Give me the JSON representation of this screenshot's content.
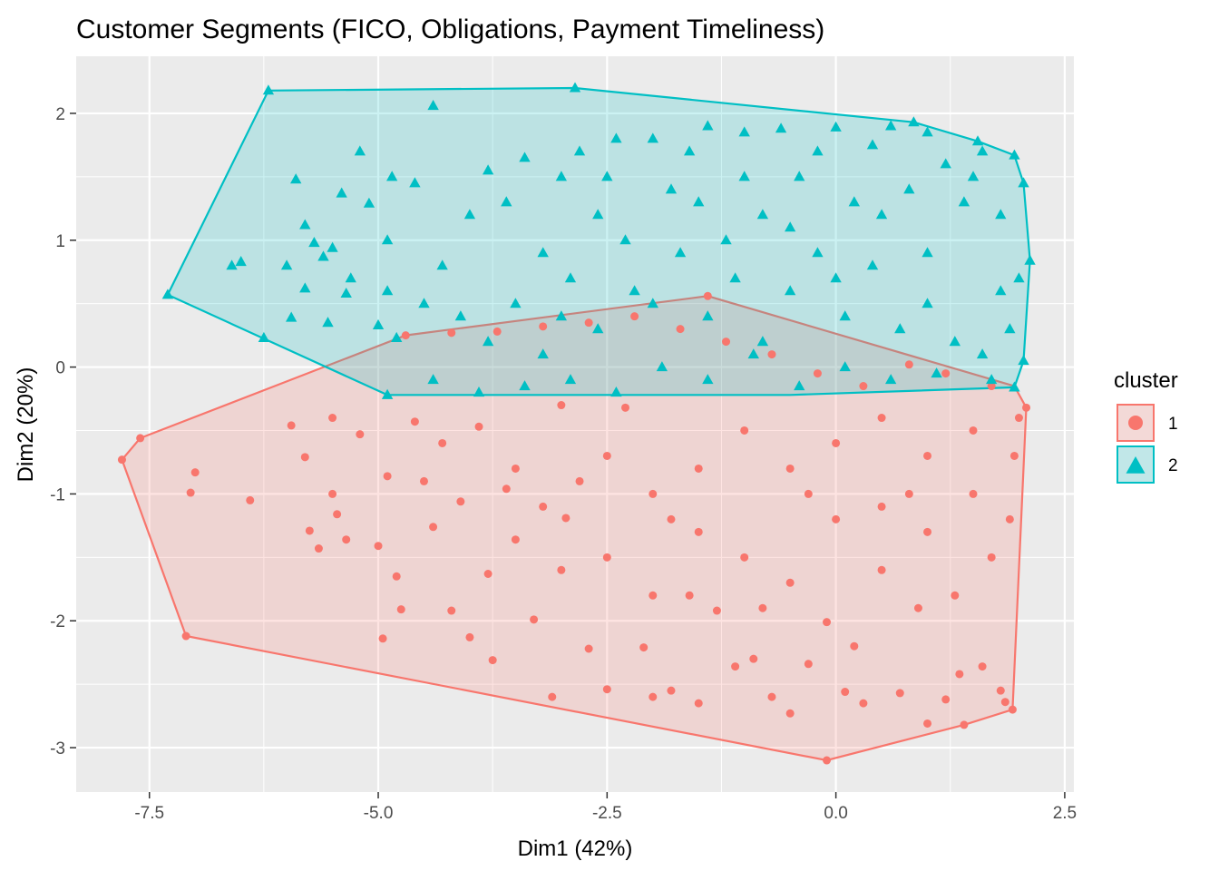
{
  "chart_data": {
    "type": "scatter",
    "title": "Customer Segments (FICO, Obligations, Payment Timeliness)",
    "xlabel": "Dim1 (42%)",
    "ylabel": "Dim2 (20%)",
    "xlim": [
      -8.3,
      2.6
    ],
    "ylim": [
      -3.35,
      2.45
    ],
    "x_ticks": [
      -7.5,
      -5.0,
      -2.5,
      0.0,
      2.5
    ],
    "x_tick_labels": [
      "-7.5",
      "-5.0",
      "-2.5",
      "0.0",
      "2.5"
    ],
    "y_ticks": [
      -3,
      -2,
      -1,
      0,
      1,
      2
    ],
    "y_tick_labels": [
      "-3",
      "-2",
      "-1",
      "0",
      "1",
      "2"
    ],
    "grid": true,
    "legend": {
      "title": "cluster",
      "placement": "right"
    },
    "colors": {
      "1": "#F8766D",
      "2": "#00BFC4",
      "panel": "#EBEBEB",
      "grid": "#FFFFFF"
    },
    "series": [
      {
        "name": "1",
        "shape": "circle",
        "color": "#F8766D",
        "hull": [
          [
            -7.8,
            -0.73
          ],
          [
            -7.6,
            -0.56
          ],
          [
            -4.7,
            0.25
          ],
          [
            -1.4,
            0.56
          ],
          [
            1.95,
            -0.15
          ],
          [
            2.08,
            -0.32
          ],
          [
            1.93,
            -2.7
          ],
          [
            1.4,
            -2.82
          ],
          [
            -0.1,
            -3.1
          ],
          [
            -7.1,
            -2.12
          ]
        ],
        "points": [
          [
            -7.8,
            -0.73
          ],
          [
            -7.6,
            -0.56
          ],
          [
            -7.1,
            -2.12
          ],
          [
            -0.1,
            -3.1
          ],
          [
            1.4,
            -2.82
          ],
          [
            1.93,
            -2.7
          ],
          [
            2.08,
            -0.32
          ],
          [
            -1.4,
            0.56
          ],
          [
            -4.7,
            0.25
          ],
          [
            -7.0,
            -0.83
          ],
          [
            -7.05,
            -0.99
          ],
          [
            -6.4,
            -1.05
          ],
          [
            -5.95,
            -0.46
          ],
          [
            -5.8,
            -0.71
          ],
          [
            -5.75,
            -1.29
          ],
          [
            -5.65,
            -1.43
          ],
          [
            -5.5,
            -0.4
          ],
          [
            -5.5,
            -1.0
          ],
          [
            -5.45,
            -1.16
          ],
          [
            -5.35,
            -1.36
          ],
          [
            -5.2,
            -0.53
          ],
          [
            -5.0,
            -1.41
          ],
          [
            -4.95,
            -2.14
          ],
          [
            -4.9,
            -0.86
          ],
          [
            -4.8,
            -1.65
          ],
          [
            -4.75,
            -1.91
          ],
          [
            -4.6,
            -0.43
          ],
          [
            -4.4,
            -1.26
          ],
          [
            -4.3,
            -0.6
          ],
          [
            -4.2,
            -1.92
          ],
          [
            -4.1,
            -1.06
          ],
          [
            -4.0,
            -2.13
          ],
          [
            -3.9,
            -0.47
          ],
          [
            -3.8,
            -1.63
          ],
          [
            -3.75,
            -2.31
          ],
          [
            -3.6,
            -0.96
          ],
          [
            -3.5,
            -1.36
          ],
          [
            -3.3,
            -1.99
          ],
          [
            -3.1,
            -2.6
          ],
          [
            -2.95,
            -1.19
          ],
          [
            -2.7,
            -2.22
          ],
          [
            -2.5,
            -2.54
          ],
          [
            -2.3,
            -0.32
          ],
          [
            -2.1,
            -2.21
          ],
          [
            -2.0,
            -2.6
          ],
          [
            -1.8,
            -2.55
          ],
          [
            -1.6,
            -1.8
          ],
          [
            -1.5,
            -2.65
          ],
          [
            -1.3,
            -1.92
          ],
          [
            -1.1,
            -2.36
          ],
          [
            -0.9,
            -2.3
          ],
          [
            -0.7,
            -2.6
          ],
          [
            -0.5,
            -2.73
          ],
          [
            -0.3,
            -2.34
          ],
          [
            -0.1,
            -2.01
          ],
          [
            0.1,
            -2.56
          ],
          [
            0.3,
            -2.65
          ],
          [
            0.5,
            -1.1
          ],
          [
            0.7,
            -2.57
          ],
          [
            0.9,
            -1.9
          ],
          [
            1.0,
            -2.81
          ],
          [
            1.2,
            -2.62
          ],
          [
            1.35,
            -2.42
          ],
          [
            1.6,
            -2.36
          ],
          [
            1.8,
            -2.55
          ],
          [
            1.85,
            -2.64
          ],
          [
            1.9,
            -1.2
          ],
          [
            1.95,
            -0.7
          ],
          [
            2.0,
            -0.4
          ],
          [
            1.7,
            -0.15
          ],
          [
            1.2,
            -0.05
          ],
          [
            0.8,
            0.02
          ],
          [
            0.3,
            -0.15
          ],
          [
            -0.2,
            -0.05
          ],
          [
            -0.7,
            0.1
          ],
          [
            -1.2,
            0.2
          ],
          [
            -1.7,
            0.3
          ],
          [
            -2.2,
            0.4
          ],
          [
            -2.7,
            0.35
          ],
          [
            -3.2,
            0.32
          ],
          [
            -3.7,
            0.28
          ],
          [
            -4.2,
            0.27
          ],
          [
            -3.0,
            -0.3
          ],
          [
            -2.5,
            -0.7
          ],
          [
            -2.0,
            -1.0
          ],
          [
            -1.5,
            -1.3
          ],
          [
            -1.0,
            -1.5
          ],
          [
            -0.5,
            -1.7
          ],
          [
            0.0,
            -1.2
          ],
          [
            0.5,
            -1.6
          ],
          [
            1.0,
            -1.3
          ],
          [
            1.5,
            -1.0
          ],
          [
            -1.0,
            -0.5
          ],
          [
            -0.5,
            -0.8
          ],
          [
            0.0,
            -0.6
          ],
          [
            0.5,
            -0.4
          ],
          [
            1.0,
            -0.7
          ],
          [
            1.5,
            -0.5
          ],
          [
            -2.5,
            -1.5
          ],
          [
            -2.0,
            -1.8
          ],
          [
            -1.5,
            -0.8
          ],
          [
            -3.5,
            -0.8
          ],
          [
            -3.0,
            -1.6
          ],
          [
            -2.8,
            -0.9
          ],
          [
            -0.8,
            -1.9
          ],
          [
            0.2,
            -2.2
          ],
          [
            1.3,
            -1.8
          ],
          [
            1.7,
            -1.5
          ],
          [
            -1.8,
            -1.2
          ],
          [
            -0.3,
            -1.0
          ],
          [
            0.8,
            -1.0
          ],
          [
            -4.5,
            -0.9
          ],
          [
            -3.2,
            -1.1
          ]
        ]
      },
      {
        "name": "2",
        "shape": "triangle",
        "color": "#00BFC4",
        "hull": [
          [
            -6.2,
            2.18
          ],
          [
            -2.85,
            2.2
          ],
          [
            0.85,
            1.93
          ],
          [
            1.55,
            1.78
          ],
          [
            1.95,
            1.67
          ],
          [
            2.05,
            1.45
          ],
          [
            2.12,
            0.84
          ],
          [
            2.05,
            0.05
          ],
          [
            1.95,
            -0.16
          ],
          [
            -0.5,
            -0.22
          ],
          [
            -4.9,
            -0.22
          ],
          [
            -7.3,
            0.57
          ]
        ],
        "points": [
          [
            -6.2,
            2.18
          ],
          [
            -2.85,
            2.2
          ],
          [
            0.85,
            1.93
          ],
          [
            1.55,
            1.78
          ],
          [
            1.95,
            1.67
          ],
          [
            2.05,
            1.45
          ],
          [
            2.12,
            0.84
          ],
          [
            2.05,
            0.05
          ],
          [
            1.95,
            -0.16
          ],
          [
            -4.9,
            -0.22
          ],
          [
            -7.3,
            0.57
          ],
          [
            -6.25,
            0.23
          ],
          [
            -4.4,
            2.06
          ],
          [
            -5.9,
            1.48
          ],
          [
            -5.4,
            1.37
          ],
          [
            -5.1,
            1.29
          ],
          [
            -5.2,
            1.7
          ],
          [
            -4.85,
            1.5
          ],
          [
            -4.6,
            1.45
          ],
          [
            -4.9,
            0.6
          ],
          [
            -4.9,
            1.0
          ],
          [
            -5.35,
            0.58
          ],
          [
            -5.55,
            0.35
          ],
          [
            -5.8,
            0.62
          ],
          [
            -5.95,
            0.39
          ],
          [
            -6.0,
            0.8
          ],
          [
            -6.5,
            0.83
          ],
          [
            -6.6,
            0.8
          ],
          [
            -5.8,
            1.12
          ],
          [
            -5.7,
            0.98
          ],
          [
            -5.6,
            0.87
          ],
          [
            -5.5,
            0.94
          ],
          [
            -5.3,
            0.7
          ],
          [
            -5.0,
            0.33
          ],
          [
            -4.8,
            0.23
          ],
          [
            -4.5,
            0.5
          ],
          [
            -4.3,
            0.8
          ],
          [
            -4.0,
            1.2
          ],
          [
            -3.8,
            1.55
          ],
          [
            -3.6,
            1.3
          ],
          [
            -3.4,
            1.65
          ],
          [
            -3.2,
            0.9
          ],
          [
            -3.0,
            1.5
          ],
          [
            -2.8,
            1.7
          ],
          [
            -2.6,
            1.2
          ],
          [
            -2.4,
            1.8
          ],
          [
            -2.2,
            0.6
          ],
          [
            -2.0,
            1.8
          ],
          [
            -1.8,
            1.4
          ],
          [
            -1.6,
            1.7
          ],
          [
            -1.4,
            1.9
          ],
          [
            -1.2,
            1.0
          ],
          [
            -1.0,
            1.85
          ],
          [
            -0.8,
            1.2
          ],
          [
            -0.6,
            1.88
          ],
          [
            -0.4,
            1.5
          ],
          [
            -0.2,
            1.7
          ],
          [
            0.0,
            1.89
          ],
          [
            0.2,
            1.3
          ],
          [
            0.4,
            1.75
          ],
          [
            0.6,
            1.9
          ],
          [
            0.8,
            1.4
          ],
          [
            1.0,
            1.85
          ],
          [
            1.2,
            1.6
          ],
          [
            1.4,
            1.3
          ],
          [
            1.6,
            1.7
          ],
          [
            1.8,
            1.2
          ],
          [
            2.0,
            0.7
          ],
          [
            1.9,
            0.3
          ],
          [
            1.6,
            0.1
          ],
          [
            1.3,
            0.2
          ],
          [
            1.0,
            0.5
          ],
          [
            0.7,
            0.3
          ],
          [
            0.4,
            0.8
          ],
          [
            0.1,
            0.4
          ],
          [
            -0.2,
            0.9
          ],
          [
            -0.5,
            0.6
          ],
          [
            -0.8,
            0.2
          ],
          [
            -1.1,
            0.7
          ],
          [
            -1.4,
            0.4
          ],
          [
            -1.7,
            0.9
          ],
          [
            -2.0,
            0.5
          ],
          [
            -2.3,
            1.0
          ],
          [
            -2.6,
            0.3
          ],
          [
            -2.9,
            0.7
          ],
          [
            -3.2,
            0.1
          ],
          [
            -3.5,
            0.5
          ],
          [
            -3.8,
            0.2
          ],
          [
            -4.1,
            0.4
          ],
          [
            -4.4,
            -0.1
          ],
          [
            -3.9,
            -0.2
          ],
          [
            -3.4,
            -0.15
          ],
          [
            -2.9,
            -0.1
          ],
          [
            -2.4,
            -0.2
          ],
          [
            -1.9,
            0.0
          ],
          [
            -1.4,
            -0.1
          ],
          [
            -0.9,
            0.1
          ],
          [
            -0.4,
            -0.15
          ],
          [
            0.1,
            0.0
          ],
          [
            0.6,
            -0.1
          ],
          [
            1.1,
            -0.05
          ],
          [
            1.7,
            -0.1
          ],
          [
            -1.0,
            1.5
          ],
          [
            -0.5,
            1.1
          ],
          [
            0.0,
            0.7
          ],
          [
            0.5,
            1.2
          ],
          [
            1.0,
            0.9
          ],
          [
            1.5,
            1.5
          ],
          [
            1.8,
            0.6
          ],
          [
            -1.5,
            1.3
          ],
          [
            -2.5,
            1.5
          ],
          [
            -3.0,
            0.4
          ]
        ]
      }
    ]
  }
}
